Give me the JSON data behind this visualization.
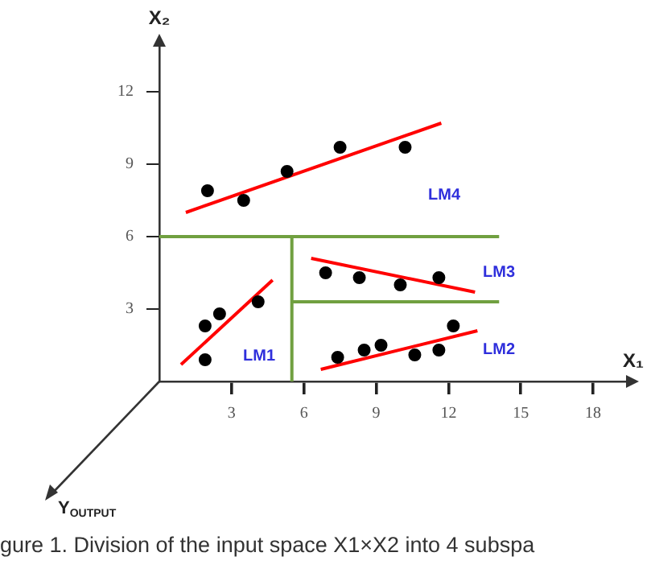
{
  "chart_data": {
    "type": "scatter",
    "xlabel": "X₁",
    "ylabel": "X₂",
    "xlim": [
      0,
      19.5
    ],
    "ylim": [
      0,
      14
    ],
    "xticks": [
      3,
      6,
      9,
      12,
      15,
      18
    ],
    "yticks": [
      3,
      6,
      9,
      12
    ],
    "grid": false,
    "legend": false,
    "series": [
      {
        "color": "#000000",
        "marker": "circle",
        "x": [
          2.0,
          3.5,
          5.3,
          7.5,
          10.2
        ],
        "values": [
          7.9,
          7.5,
          8.7,
          9.7,
          9.7
        ]
      },
      {
        "type": "line",
        "marker": "none",
        "color": "#ff0000",
        "x": [
          1.1,
          11.7
        ],
        "values": [
          7.0,
          10.7
        ]
      },
      {
        "color": "#000000",
        "marker": "circle",
        "x": [
          6.9,
          8.3,
          10.0,
          11.6
        ],
        "values": [
          4.5,
          4.3,
          4.0,
          4.3
        ]
      },
      {
        "type": "line",
        "marker": "none",
        "color": "#ff0000",
        "x": [
          6.3,
          13.1
        ],
        "values": [
          5.1,
          3.7
        ]
      },
      {
        "color": "#000000",
        "marker": "circle",
        "x": [
          1.9,
          2.5,
          4.1,
          1.9
        ],
        "values": [
          2.3,
          2.8,
          3.3,
          0.9
        ]
      },
      {
        "type": "line",
        "marker": "none",
        "color": "#ff0000",
        "x": [
          0.9,
          4.7
        ],
        "values": [
          0.7,
          4.2
        ]
      },
      {
        "color": "#000000",
        "marker": "circle",
        "x": [
          7.4,
          8.5,
          9.2,
          10.6,
          11.6,
          12.2
        ],
        "values": [
          1.0,
          1.3,
          1.5,
          1.1,
          1.3,
          2.3
        ]
      },
      {
        "type": "line",
        "marker": "none",
        "color": "#ff0000",
        "x": [
          6.7,
          13.2
        ],
        "values": [
          0.5,
          2.1
        ]
      },
      {
        "type": "line",
        "marker": "none",
        "color": "#70a040",
        "x": [
          0,
          14.1
        ],
        "values": [
          6,
          6
        ]
      },
      {
        "type": "line",
        "marker": "none",
        "color": "#70a040",
        "x": [
          5.5,
          5.5
        ],
        "values": [
          0,
          6
        ]
      },
      {
        "type": "line",
        "marker": "none",
        "color": "#70a040",
        "x": [
          5.5,
          14.1
        ],
        "values": [
          3.3,
          3.3
        ]
      }
    ],
    "annotations": [
      "LM4",
      "LM3",
      "LM2",
      "LM1",
      "Y$_{OUTPUT}$",
      "gure 1. Division of the input space X1×X2 into 4 subspa"
    ]
  }
}
